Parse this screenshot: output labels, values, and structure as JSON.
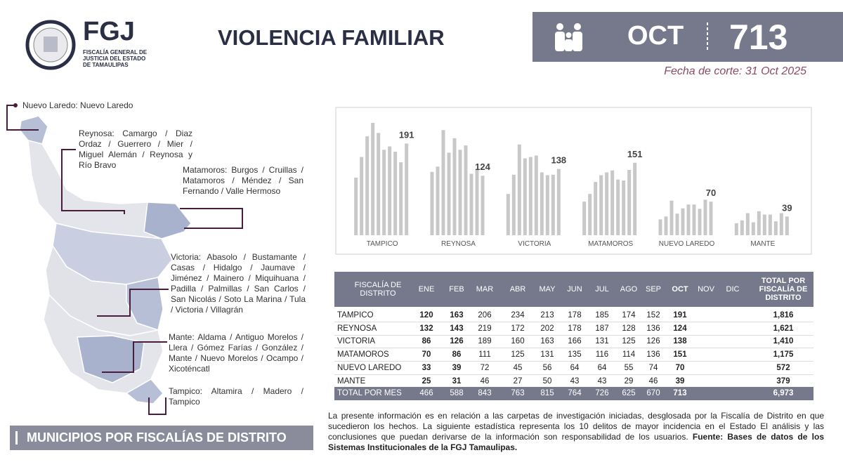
{
  "header": {
    "logo_text": "FGJ",
    "logo_subtitle": [
      "FISCALÍA GENERAL DE",
      "JUSTICIA DEL ESTADO",
      "DE TAMAULIPAS"
    ],
    "title": "VIOLENCIA FAMILIAR",
    "month": "OCT",
    "total": 713,
    "cutoff": "Fecha de corte: 31 Oct 2025"
  },
  "map": {
    "labels": [
      "Nuevo Laredo: Nuevo Laredo",
      "Reynosa: Camargo / Diaz Ordaz / Guerrero / Mier / Miguel Alemán / Reynosa y Río Bravo",
      "Matamoros: Burgos / Cruillas / Matamoros / Méndez / San Fernando / Valle Hermoso",
      "Victoria: Abasolo / Bustamante / Casas / Hidalgo / Jaumave / Jiménez / Mainero / Miquihuana / Padilla / Palmillas / San Carlos / San Nicolás / Soto La Marina / Tula / Victoria / Villagrán",
      "Mante: Aldama / Antiguo Morelos / Llera / Gómez Farías / González / Mante / Nuevo Morelos / Ocampo / Xicoténcatl",
      "Tampico: Altamira / Madero / Tampico"
    ],
    "section_title": "MUNICIPIOS POR FISCALÍAS DE DISTRITO"
  },
  "chart_data": {
    "type": "bar",
    "categories": [
      "TAMPICO",
      "REYNOSA",
      "VICTORIA",
      "MATAMOROS",
      "NUEVO LAREDO",
      "MANTE"
    ],
    "color": "#c8c8c8",
    "label_color": "#444444",
    "series": [
      {
        "name": "ENE",
        "values": [
          120,
          132,
          86,
          70,
          33,
          25
        ]
      },
      {
        "name": "FEB",
        "values": [
          163,
          143,
          126,
          86,
          39,
          31
        ]
      },
      {
        "name": "MAR",
        "values": [
          206,
          219,
          189,
          111,
          72,
          46
        ]
      },
      {
        "name": "ABR",
        "values": [
          234,
          172,
          160,
          125,
          45,
          27
        ]
      },
      {
        "name": "MAY",
        "values": [
          213,
          202,
          163,
          131,
          56,
          50
        ]
      },
      {
        "name": "JUN",
        "values": [
          178,
          178,
          166,
          135,
          64,
          43
        ]
      },
      {
        "name": "JUL",
        "values": [
          185,
          187,
          131,
          116,
          64,
          43
        ]
      },
      {
        "name": "AGO",
        "values": [
          174,
          128,
          125,
          114,
          55,
          29
        ]
      },
      {
        "name": "SEP",
        "values": [
          152,
          136,
          126,
          136,
          74,
          46
        ]
      },
      {
        "name": "OCT",
        "values": [
          191,
          124,
          138,
          151,
          70,
          39
        ]
      }
    ]
  },
  "table": {
    "district_header": "FISCALÍA DE DISTRITO",
    "more_months": [
      "NOV",
      "DIC"
    ],
    "total_column": {
      "header": "TOTAL POR FISCALÍA DE DISTRITO",
      "values": [
        1816,
        1621,
        1410,
        1175,
        572,
        379
      ],
      "value_labels": [
        "1,816",
        "1,621",
        "1,410",
        "1,175",
        "572",
        "379"
      ]
    },
    "total_row": {
      "label": "TOTAL POR MES",
      "values": [
        466,
        588,
        843,
        763,
        815,
        764,
        726,
        625,
        670,
        713
      ],
      "grand_total": 6973,
      "grand_total_label": "6,973"
    }
  },
  "footnote": {
    "text": "La presente información es en relación a las carpetas de investigación iniciadas, desglosada por la Fiscalía de Distrito en que sucedieron los hechos. La siguiente estadística representa los 10 delitos de mayor incidencia en el Estado El análisis y las conclusiones que puedan derivarse de la información son responsabilidad de los usuarios.",
    "source": "Fuente: Bases de datos de los Sistemas Institucionales de la FGJ Tamaulipas."
  }
}
